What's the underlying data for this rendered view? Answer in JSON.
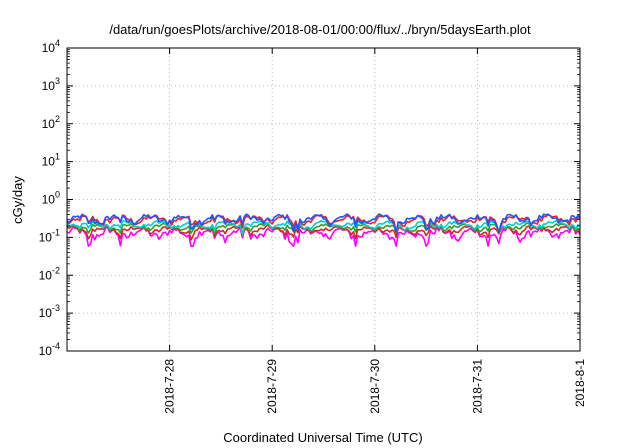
{
  "chart_data": {
    "type": "line",
    "title": "/data/run/goesPlots/archive/2018-08-01/00:00/flux/../bryn/5daysEarth.plot",
    "xlabel": "Coordinated Universal Time (UTC)",
    "ylabel": "cGy/day",
    "x_range": [
      "2018-07-27T00:00",
      "2018-08-01T00:00"
    ],
    "y_scale": "log",
    "ylim": [
      0.0001,
      10000
    ],
    "y_ticks": [
      {
        "base": "10",
        "exp": "-4",
        "value": 0.0001
      },
      {
        "base": "10",
        "exp": "-3",
        "value": 0.001
      },
      {
        "base": "10",
        "exp": "-2",
        "value": 0.01
      },
      {
        "base": "10",
        "exp": "-1",
        "value": 0.1
      },
      {
        "base": "10",
        "exp": "0",
        "value": 1
      },
      {
        "base": "10",
        "exp": "1",
        "value": 10
      },
      {
        "base": "10",
        "exp": "2",
        "value": 100
      },
      {
        "base": "10",
        "exp": "3",
        "value": 1000
      },
      {
        "base": "10",
        "exp": "4",
        "value": 10000
      }
    ],
    "x_ticks": [
      {
        "label": "2018-7-28",
        "date": "2018-07-28T00:00"
      },
      {
        "label": "2018-7-29",
        "date": "2018-07-29T00:00"
      },
      {
        "label": "2018-7-30",
        "date": "2018-07-30T00:00"
      },
      {
        "label": "2018-7-31",
        "date": "2018-07-31T00:00"
      },
      {
        "label": "2018-8-1",
        "date": "2018-08-01T00:00"
      }
    ],
    "grid": true,
    "series": [
      {
        "color": "#ff00ff",
        "base": 0.13,
        "amplitude": 0.06,
        "dip": 0.07
      },
      {
        "color": "#d62728",
        "base": 0.16,
        "amplitude": 0.05,
        "dip": 0.06
      },
      {
        "color": "#2ca02c",
        "base": 0.19,
        "amplitude": 0.05,
        "dip": 0.07
      },
      {
        "color": "#00d0d0",
        "base": 0.22,
        "amplitude": 0.06,
        "dip": 0.08
      },
      {
        "color": "#ee2222",
        "base": 0.3,
        "amplitude": 0.1,
        "dip": 0.12
      },
      {
        "color": "#2255ff",
        "base": 0.31,
        "amplitude": 0.11,
        "dip": 0.13
      }
    ]
  }
}
